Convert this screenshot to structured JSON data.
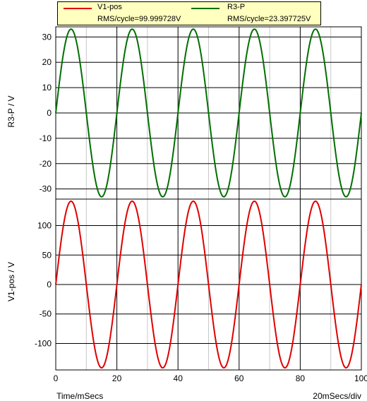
{
  "legend": {
    "entries": [
      {
        "name": "V1-pos",
        "color": "#e00000",
        "stat": "RMS/cycle=99.999728V"
      },
      {
        "name": "R3-P",
        "color": "#007000",
        "stat": "RMS/cycle=23.397725V"
      }
    ]
  },
  "footer": {
    "x_axis_label": "Time/mSecs",
    "scale_label": "20mSecs/div"
  },
  "chart_data": [
    {
      "type": "line",
      "ylabel": "R3-P / V",
      "xlabel": "Time/mSecs",
      "xlim": [
        0,
        100
      ],
      "ylim": [
        -34,
        34
      ],
      "yticks": [
        -30,
        -20,
        -10,
        0,
        10,
        20,
        30
      ],
      "xticks": [
        0,
        20,
        40,
        60,
        80,
        100
      ],
      "grid": true,
      "series": [
        {
          "name": "R3-P",
          "color": "#007000",
          "waveform": "sine",
          "amplitude": 33.09,
          "frequency_hz": 50,
          "phase_deg": 0
        }
      ]
    },
    {
      "type": "line",
      "ylabel": "V1-pos / V",
      "xlabel": "Time/mSecs",
      "xlim": [
        0,
        100
      ],
      "ylim": [
        -145,
        145
      ],
      "yticks": [
        -100,
        -50,
        0,
        50,
        100
      ],
      "xticks": [
        0,
        20,
        40,
        60,
        80,
        100
      ],
      "grid": true,
      "series": [
        {
          "name": "V1-pos",
          "color": "#e00000",
          "waveform": "sine",
          "amplitude": 141.42,
          "frequency_hz": 50,
          "phase_deg": 0
        }
      ]
    }
  ]
}
